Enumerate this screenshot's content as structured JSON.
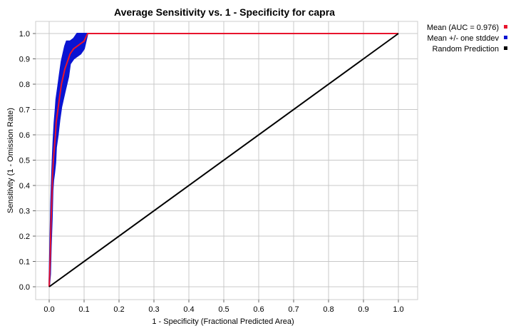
{
  "chart_data": {
    "type": "line",
    "title": "Average Sensitivity vs. 1 - Specificity for capra",
    "xlabel": "1 - Specificity (Fractional Predicted Area)",
    "ylabel": "Sensitivity (1 - Omission Rate)",
    "xlim": [
      0,
      1
    ],
    "ylim": [
      0,
      1
    ],
    "xticks": [
      "0.0",
      "0.1",
      "0.2",
      "0.3",
      "0.4",
      "0.5",
      "0.6",
      "0.7",
      "0.8",
      "0.9",
      "1.0"
    ],
    "yticks": [
      "0.0",
      "0.1",
      "0.2",
      "0.3",
      "0.4",
      "0.5",
      "0.6",
      "0.7",
      "0.8",
      "0.9",
      "1.0"
    ],
    "grid": true,
    "legend_position": "right",
    "series": [
      {
        "name": "Mean (AUC = 0.976)",
        "color": "#e8142d",
        "x": [
          0.0,
          0.003,
          0.005,
          0.008,
          0.01,
          0.012,
          0.015,
          0.018,
          0.02,
          0.025,
          0.03,
          0.035,
          0.04,
          0.045,
          0.05,
          0.055,
          0.06,
          0.07,
          0.08,
          0.09,
          0.1,
          0.11,
          1.0
        ],
        "y": [
          0.0,
          0.12,
          0.25,
          0.36,
          0.45,
          0.5,
          0.55,
          0.6,
          0.65,
          0.7,
          0.75,
          0.8,
          0.83,
          0.86,
          0.88,
          0.9,
          0.92,
          0.94,
          0.95,
          0.96,
          0.97,
          1.0,
          1.0
        ]
      },
      {
        "name": "Mean +/- one stddev",
        "color": "#0a14d2",
        "x": [
          0.0,
          0.003,
          0.005,
          0.008,
          0.01,
          0.012,
          0.015,
          0.018,
          0.02,
          0.025,
          0.03,
          0.035,
          0.04,
          0.045,
          0.05,
          0.055,
          0.06,
          0.07,
          0.08,
          0.09,
          0.1,
          0.11,
          1.0
        ],
        "upper": [
          0.0,
          0.2,
          0.33,
          0.45,
          0.52,
          0.58,
          0.65,
          0.7,
          0.74,
          0.79,
          0.84,
          0.89,
          0.92,
          0.95,
          0.97,
          0.97,
          0.97,
          0.98,
          1.0,
          1.0,
          1.0,
          1.0,
          1.0
        ],
        "lower": [
          0.0,
          0.05,
          0.16,
          0.27,
          0.38,
          0.42,
          0.45,
          0.49,
          0.55,
          0.6,
          0.66,
          0.71,
          0.74,
          0.77,
          0.8,
          0.83,
          0.88,
          0.9,
          0.91,
          0.92,
          0.94,
          1.0,
          1.0
        ]
      },
      {
        "name": "Random Prediction",
        "color": "#000000",
        "x": [
          0.0,
          1.0
        ],
        "y": [
          0.0,
          1.0
        ]
      }
    ]
  }
}
